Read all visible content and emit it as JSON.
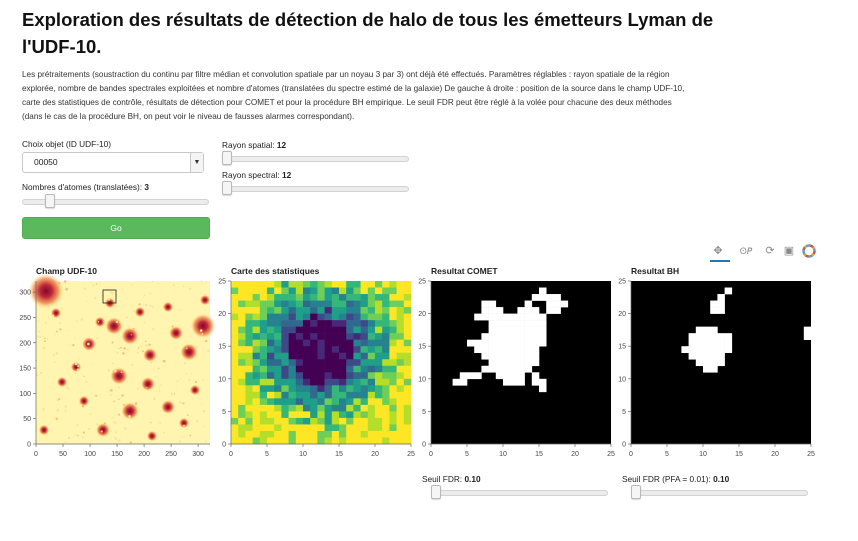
{
  "header": {
    "title": "Exploration des résultats de détection de halo de tous les émetteurs Lyman de l'UDF-10.",
    "description": "Les prétraitements (soustraction du continu par filtre médian et convolution spatiale par un noyau 3 par 3) ont déjà été effectués. Paramètres réglables : rayon spatiale de la région explorée, nombre de bandes spectrales exploitées et nombre d'atomes (translatées du spectre estimé de la galaxie) De gauche à droite : position de la source dans le champ UDF-10, carte des statistiques de contrôle, résultats de détection pour COMET et pour la procédure BH empirique. Le seuil FDR peut être réglé à la volée pour chacune des deux méthodes (dans le cas de la procédure BH, on peut voir le niveau de fausses alarmes correspondant)."
  },
  "controls": {
    "object_label": "Choix objet (ID UDF-10)",
    "object_value": "00050",
    "atoms_label": "Nombres d'atomes (translatées):",
    "atoms_value": "3",
    "atoms_fraction": 0.13,
    "spatial_label": "Rayon spatial:",
    "spatial_value": "12",
    "spatial_fraction": 0.0,
    "spectral_label": "Rayon spectral:",
    "spectral_value": "12",
    "spectral_fraction": 0.0,
    "go_label": "Go"
  },
  "toolbar": {
    "pan_icon": "pan-icon",
    "wheel_zoom_icon": "wheel-zoom-icon",
    "reset_icon": "reset-icon",
    "save_icon": "save-icon",
    "logo_icon": "bokeh-logo-icon",
    "accent_color": "#1f77b4"
  },
  "plots": {
    "field": {
      "title": "Champ UDF-10",
      "xticks": [
        "0",
        "50",
        "100",
        "150",
        "200",
        "250",
        "300"
      ],
      "yticks": [
        "0",
        "50",
        "100",
        "150",
        "200",
        "250",
        "300"
      ]
    },
    "stats": {
      "title": "Carte des statistiques",
      "xticks": [
        "0",
        "5",
        "10",
        "15",
        "20",
        "25"
      ],
      "yticks": [
        "0",
        "5",
        "10",
        "15",
        "20",
        "25"
      ]
    },
    "comet": {
      "title": "Resultat COMET",
      "xticks": [
        "0",
        "5",
        "10",
        "15",
        "20",
        "25"
      ],
      "yticks": [
        "0",
        "5",
        "10",
        "15",
        "20",
        "25"
      ]
    },
    "bh": {
      "title": "Resultat BH",
      "xticks": [
        "0",
        "5",
        "10",
        "15",
        "20",
        "25"
      ],
      "yticks": [
        "0",
        "5",
        "10",
        "15",
        "20",
        "25"
      ]
    }
  },
  "fdr": {
    "comet_label": "Seuil FDR:",
    "comet_value": "0.10",
    "comet_fraction": 0.0,
    "bh_label": "Seuil FDR (PFA = 0.01):",
    "bh_value": "0.10",
    "bh_fraction": 0.0
  },
  "colors": {
    "go_button": "#5cb85c",
    "binary_on": "#ffffff",
    "binary_off": "#000000"
  }
}
